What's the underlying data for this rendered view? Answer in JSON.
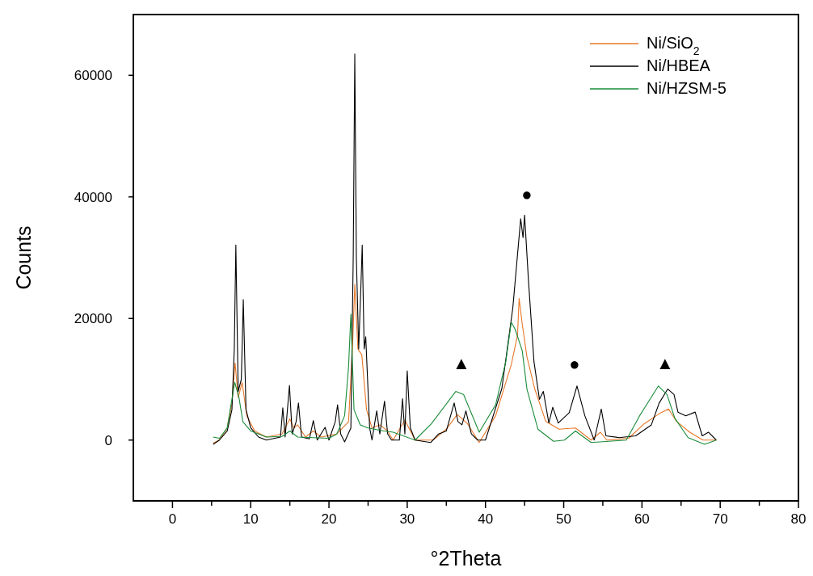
{
  "chart_data": {
    "type": "line",
    "xlabel": "°2Theta",
    "ylabel": "Counts",
    "xlim": [
      -5,
      80
    ],
    "ylim": [
      -10000,
      70000
    ],
    "xticks": [
      0,
      {
        "value": 5,
        "label": null
      },
      10,
      {
        "value": 15,
        "label": null
      },
      20,
      {
        "value": 25,
        "label": null
      },
      30,
      {
        "value": 35,
        "label": null
      },
      40,
      {
        "value": 45,
        "label": null
      },
      50,
      {
        "value": 55,
        "label": null
      },
      60,
      {
        "value": 65,
        "label": null
      },
      70,
      {
        "value": 75,
        "label": null
      },
      80
    ],
    "yticks": [
      0,
      20000,
      40000,
      60000
    ],
    "grid": false,
    "legend": "top right",
    "line_style": "solid",
    "annotations": [
      "●",
      "●",
      "▲",
      "▲"
    ],
    "series": [
      {
        "name": "Ni/SiO$_{2}$",
        "color": "#e8782a",
        "x": [
          5.2,
          6,
          7,
          7.6,
          8,
          8.4,
          8.9,
          9.5,
          10.5,
          12,
          14,
          15,
          15.5,
          16,
          17,
          18,
          19,
          21,
          22.5,
          23,
          23.3,
          23.7,
          24.2,
          24.8,
          25.5,
          26.5,
          27.5,
          28.2,
          29.7,
          31,
          33.3,
          35,
          36.4,
          37.7,
          39.2,
          41.3,
          43.3,
          44.1,
          44.3,
          44.7,
          45.3,
          46.3,
          47.7,
          49.4,
          51.5,
          53.5,
          54.7,
          55.5,
          58.3,
          60.3,
          62.4,
          63.4,
          64.4,
          66.1,
          67.8,
          69.5
        ],
        "values": [
          -500,
          0,
          2000,
          6000,
          12700,
          7000,
          9500,
          4000,
          1500,
          500,
          1000,
          3500,
          2000,
          2500,
          500,
          1500,
          500,
          1000,
          3000,
          15000,
          25600,
          15000,
          14000,
          5000,
          2000,
          2500,
          1500,
          0,
          3300,
          0,
          0,
          1800,
          4200,
          2700,
          -400,
          4000,
          12400,
          17300,
          23300,
          19100,
          13700,
          8400,
          3100,
          1800,
          2000,
          0,
          1300,
          0,
          300,
          2700,
          4500,
          5100,
          3100,
          1300,
          0,
          0
        ]
      },
      {
        "name": "Ni/HBEA",
        "color": "#000000",
        "x": [
          5.2,
          6,
          7,
          7.6,
          7.9,
          8.1,
          8.4,
          8.8,
          9.05,
          9.4,
          10,
          11,
          12,
          13.8,
          14.1,
          14.4,
          14.95,
          15.3,
          15.8,
          16.1,
          16.5,
          17.5,
          18,
          18.5,
          19.5,
          20,
          20.8,
          21.1,
          21.5,
          22,
          22.8,
          23.1,
          23.3,
          23.5,
          23.8,
          24.1,
          24.25,
          24.5,
          24.7,
          25.2,
          25.5,
          26.1,
          26.5,
          27.1,
          27.5,
          28,
          29,
          29.4,
          29.7,
          30,
          30.4,
          31,
          33,
          34,
          35,
          36,
          36.5,
          37,
          37.5,
          38.2,
          39,
          40,
          42.1,
          43.5,
          44.5,
          44.8,
          45,
          45.5,
          46.2,
          46.9,
          47.4,
          48.1,
          48.6,
          49.3,
          50.7,
          51.7,
          52.7,
          53.9,
          54.8,
          55.4,
          57.1,
          59.2,
          61.2,
          62.2,
          63.3,
          64.1,
          64.6,
          65.6,
          66.8,
          67.7,
          68.5,
          69.5
        ],
        "values": [
          -700,
          0,
          1500,
          5000,
          15000,
          32100,
          8000,
          10000,
          23100,
          5000,
          2000,
          500,
          0,
          500,
          5300,
          500,
          9000,
          1000,
          3000,
          6100,
          500,
          200,
          3200,
          0,
          2100,
          0,
          3000,
          5800,
          1000,
          -300,
          2000,
          30000,
          63500,
          30000,
          15000,
          26000,
          32100,
          15000,
          17000,
          2000,
          0,
          4800,
          1000,
          6400,
          1000,
          0,
          0,
          6800,
          1000,
          11400,
          2000,
          0,
          -400,
          1000,
          1500,
          6100,
          3000,
          2500,
          4800,
          1000,
          0,
          0,
          8500,
          21800,
          36400,
          33300,
          37000,
          26200,
          12900,
          6700,
          8000,
          2800,
          5400,
          2800,
          4500,
          8900,
          4000,
          0,
          5100,
          700,
          400,
          700,
          2500,
          6100,
          8400,
          7500,
          4600,
          4000,
          4600,
          700,
          1300,
          0
        ]
      },
      {
        "name": "Ni/HZSM-5",
        "color": "#1a8c3a",
        "x": [
          5.2,
          6,
          7,
          7.5,
          7.96,
          8.5,
          9,
          10,
          12,
          14,
          15,
          16,
          20,
          21,
          22,
          22.5,
          22.8,
          23.2,
          24,
          25,
          27,
          28.2,
          31,
          33.1,
          36.2,
          37.2,
          39.2,
          41.3,
          42.6,
          43.3,
          43.8,
          44.7,
          45.3,
          46.7,
          48.7,
          50.1,
          51.5,
          53.5,
          58,
          59.7,
          62.1,
          63.2,
          64.2,
          65.9,
          68,
          69.5
        ],
        "values": [
          500,
          300,
          2000,
          6000,
          9500,
          7000,
          3000,
          1500,
          500,
          600,
          1500,
          500,
          300,
          1000,
          4000,
          12000,
          20700,
          5000,
          2500,
          2000,
          1500,
          1300,
          0,
          2700,
          8000,
          7500,
          1300,
          5800,
          12900,
          19400,
          18200,
          14700,
          8400,
          1800,
          -200,
          0,
          1500,
          -400,
          0,
          4000,
          8900,
          7500,
          3600,
          400,
          -700,
          0
        ]
      }
    ]
  }
}
